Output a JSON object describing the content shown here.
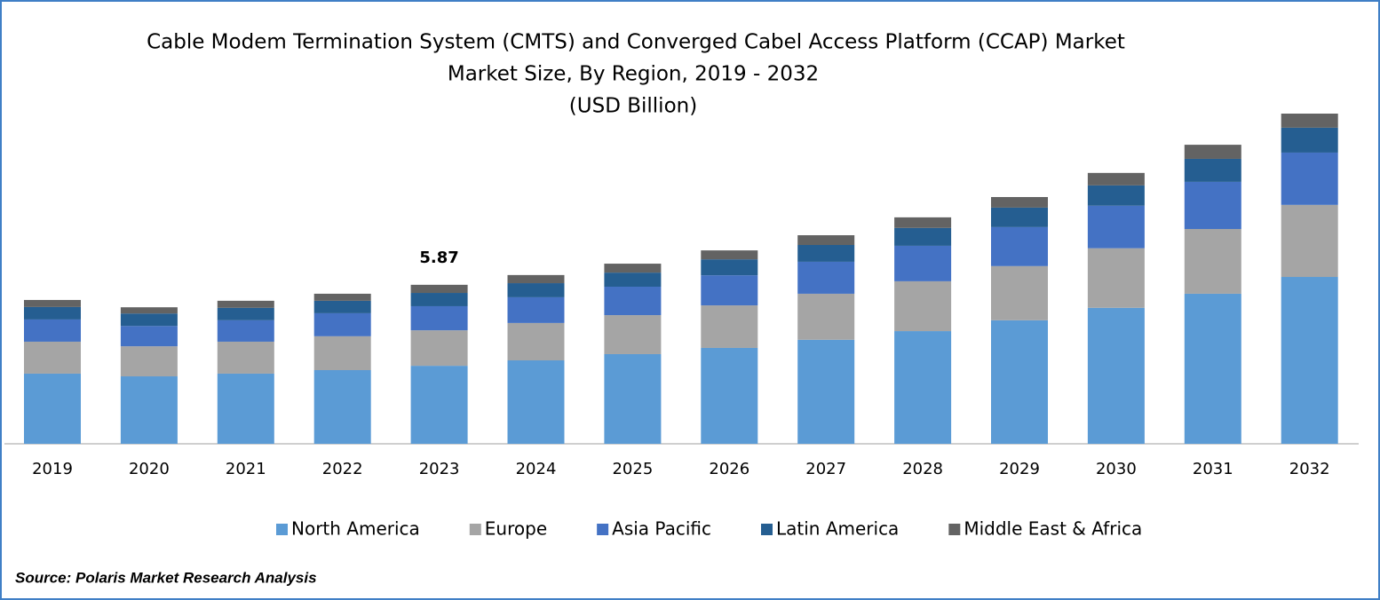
{
  "chart_data": {
    "type": "stacked-bar",
    "title": "Cable Modem Termination System (CMTS) and Converged Cabel Access Platform (CCAP) Market",
    "subtitle": "Market Size, By Region, 2019 - 2032",
    "unit": "(USD Billion)",
    "categories": [
      "2019",
      "2020",
      "2021",
      "2022",
      "2023",
      "2024",
      "2025",
      "2026",
      "2027",
      "2028",
      "2029",
      "2030",
      "2031",
      "2032"
    ],
    "series": [
      {
        "name": "North America",
        "color": "#5b9bd5",
        "values": [
          2.59,
          2.49,
          2.59,
          2.72,
          2.88,
          3.08,
          3.31,
          3.54,
          3.84,
          4.16,
          4.56,
          5.02,
          5.54,
          6.16
        ]
      },
      {
        "name": "Europe",
        "color": "#a5a5a5",
        "values": [
          1.18,
          1.11,
          1.18,
          1.25,
          1.31,
          1.38,
          1.44,
          1.57,
          1.7,
          1.84,
          2.0,
          2.2,
          2.39,
          2.66
        ]
      },
      {
        "name": "Asia Pacific",
        "color": "#4472c4",
        "values": [
          0.82,
          0.75,
          0.79,
          0.85,
          0.89,
          0.95,
          1.05,
          1.11,
          1.18,
          1.31,
          1.44,
          1.57,
          1.74,
          1.93
        ]
      },
      {
        "name": "Latin America",
        "color": "#255e91",
        "values": [
          0.46,
          0.46,
          0.46,
          0.46,
          0.49,
          0.52,
          0.52,
          0.59,
          0.62,
          0.66,
          0.72,
          0.75,
          0.85,
          0.92
        ]
      },
      {
        "name": "Middle East & Africa",
        "color": "#636363",
        "values": [
          0.26,
          0.23,
          0.26,
          0.26,
          0.3,
          0.3,
          0.33,
          0.33,
          0.36,
          0.39,
          0.39,
          0.46,
          0.52,
          0.52
        ]
      }
    ],
    "annotation": {
      "category": "2023",
      "value": 5.87
    },
    "source": "Source: Polaris Market Research Analysis"
  }
}
